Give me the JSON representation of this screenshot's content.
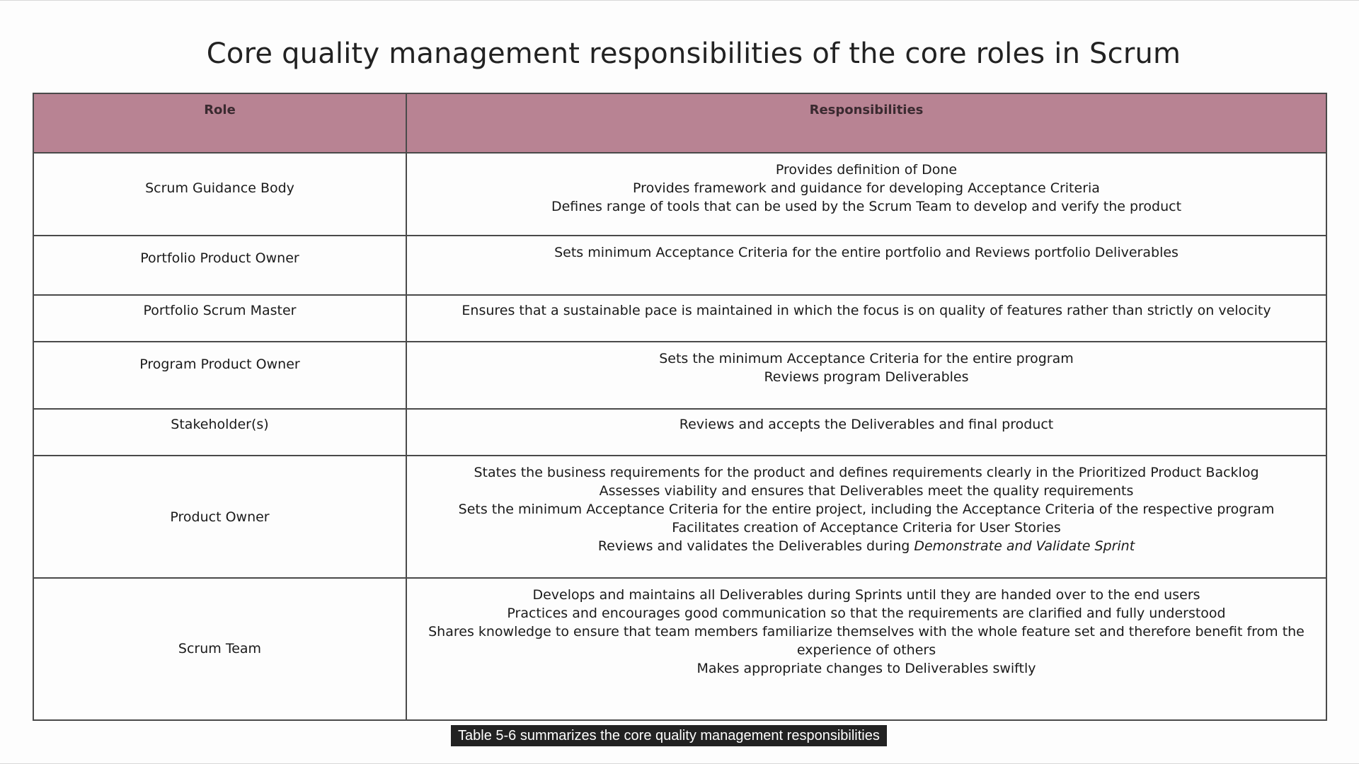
{
  "title": "Core quality management responsibilities of the core roles in Scrum",
  "table": {
    "headers": {
      "role": "Role",
      "responsibilities": "Responsibilities"
    },
    "rows": [
      {
        "role": "Scrum Guidance Body",
        "lines": [
          "Provides definition of Done",
          "Provides framework and guidance for developing Acceptance Criteria",
          "Defines range of tools that can be used by the Scrum Team to develop and verify the product"
        ]
      },
      {
        "role": "Portfolio Product Owner",
        "lines": [
          "Sets minimum Acceptance Criteria for the entire portfolio and Reviews portfolio Deliverables"
        ]
      },
      {
        "role": "Portfolio Scrum Master",
        "lines": [
          "Ensures that a sustainable pace is maintained in which the focus is on quality of features rather than strictly on velocity"
        ]
      },
      {
        "role": "Program Product Owner",
        "lines": [
          "Sets the minimum Acceptance Criteria for the entire program",
          "Reviews program Deliverables"
        ]
      },
      {
        "role": "Stakeholder(s)",
        "lines": [
          "Reviews and accepts the Deliverables and final product"
        ]
      },
      {
        "role": "Product Owner",
        "lines": [
          "States the business requirements for the product and defines requirements clearly in the Prioritized Product Backlog",
          "Assesses viability and ensures that Deliverables meet the quality requirements",
          "Sets the minimum Acceptance Criteria for the entire project, including the Acceptance Criteria of the respective program",
          "Facilitates creation of Acceptance Criteria for User Stories"
        ],
        "last_line_prefix": "Reviews and validates the Deliverables during ",
        "last_line_italic": "Demonstrate and Validate Sprint"
      },
      {
        "role": "Scrum Team",
        "lines": [
          "Develops and maintains all Deliverables during Sprints until they are handed over to the end users",
          "Practices and encourages good communication so that the requirements are clarified and fully understood",
          "Shares knowledge to ensure that team members familiarize themselves with the whole feature set and therefore benefit from the experience of others",
          "Makes appropriate changes to Deliverables swiftly"
        ]
      }
    ]
  },
  "caption": "Table 5-6 summarizes the core quality management responsibilities"
}
